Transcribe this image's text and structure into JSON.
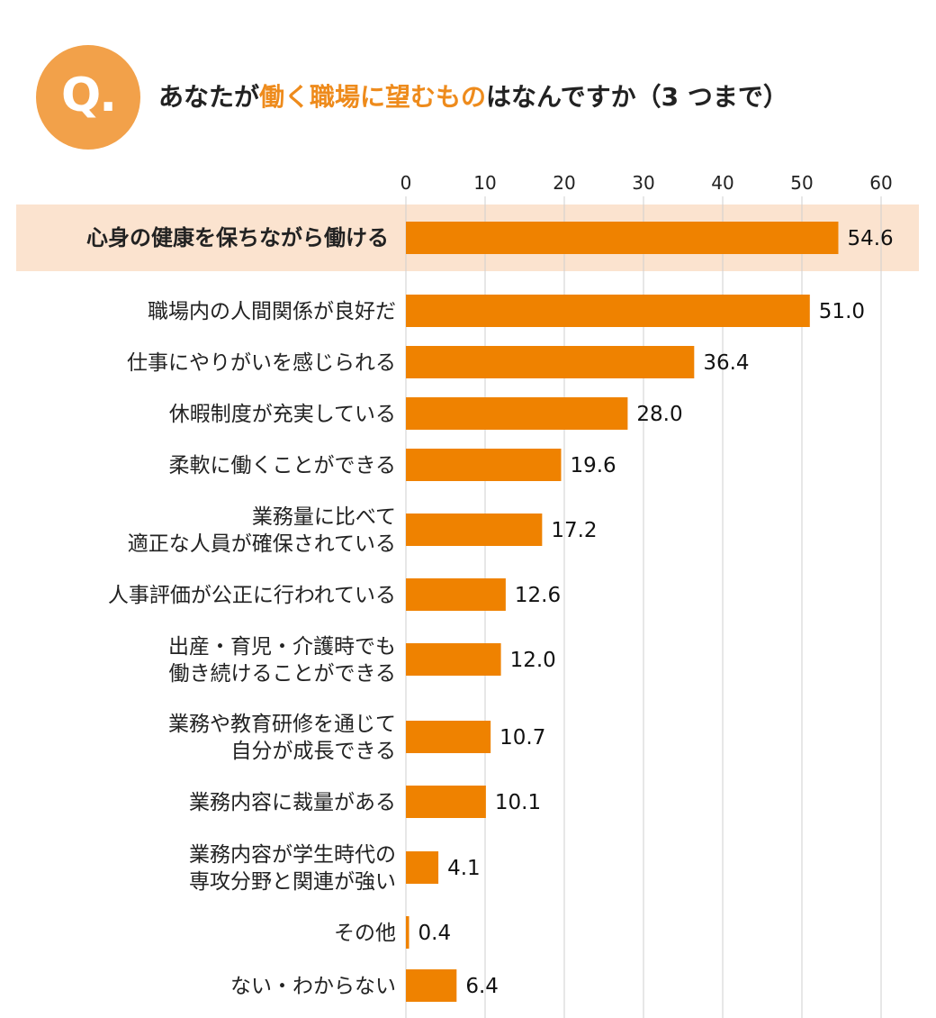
{
  "badge": {
    "text": "Q."
  },
  "title": {
    "part1": "あなたが",
    "highlight": "働く職場に望むもの",
    "part2": "はなんですか（3 つまで）"
  },
  "colors": {
    "bar": "#ef8200",
    "badge": "#f2a14a",
    "highlight_row": "#fbe3cf",
    "grid": "#cfcfcf",
    "title_highlight": "#ee8b1c"
  },
  "chart_data": {
    "type": "bar",
    "orientation": "horizontal",
    "xlim": [
      0,
      60
    ],
    "xticks": [
      0,
      10,
      20,
      30,
      40,
      50,
      60
    ],
    "grid": true,
    "highlighted_category_index": 0,
    "categories": [
      [
        "心身の健康を保ちながら働ける"
      ],
      [
        "職場内の人間関係が良好だ"
      ],
      [
        "仕事にやりがいを感じられる"
      ],
      [
        "休暇制度が充実している"
      ],
      [
        "柔軟に働くことができる"
      ],
      [
        "業務量に比べて",
        "適正な人員が確保されている"
      ],
      [
        "人事評価が公正に行われている"
      ],
      [
        "出産・育児・介護時でも",
        "働き続けることができる"
      ],
      [
        "業務や教育研修を通じて",
        "自分が成長できる"
      ],
      [
        "業務内容に裁量がある"
      ],
      [
        "業務内容が学生時代の",
        "専攻分野と関連が強い"
      ],
      [
        "その他"
      ],
      [
        "ない・わからない"
      ]
    ],
    "values": [
      54.6,
      51.0,
      36.4,
      28.0,
      19.6,
      17.2,
      12.6,
      12.0,
      10.7,
      10.1,
      4.1,
      0.4,
      6.4
    ],
    "value_labels": [
      "54.6",
      "51.0",
      "36.4",
      "28.0",
      "19.6",
      "17.2",
      "12.6",
      "12.0",
      "10.7",
      "10.1",
      "4.1",
      "0.4",
      "6.4"
    ]
  }
}
